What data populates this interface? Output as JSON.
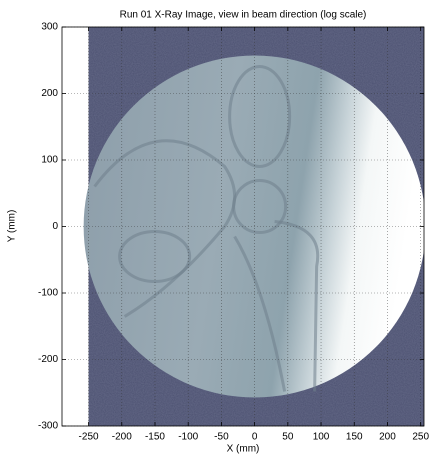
{
  "chart_data": {
    "type": "image",
    "title": "Run 01 X-Ray Image, view in beam direction (log scale)",
    "xlabel": "X (mm)",
    "ylabel": "Y (mm)",
    "xlim": [
      -290,
      255
    ],
    "ylim": [
      -300,
      300
    ],
    "xticks": [
      -250,
      -200,
      -150,
      -100,
      -50,
      0,
      50,
      100,
      150,
      200,
      250
    ],
    "yticks": [
      -300,
      -200,
      -100,
      0,
      100,
      200,
      300
    ],
    "grid": true
  }
}
